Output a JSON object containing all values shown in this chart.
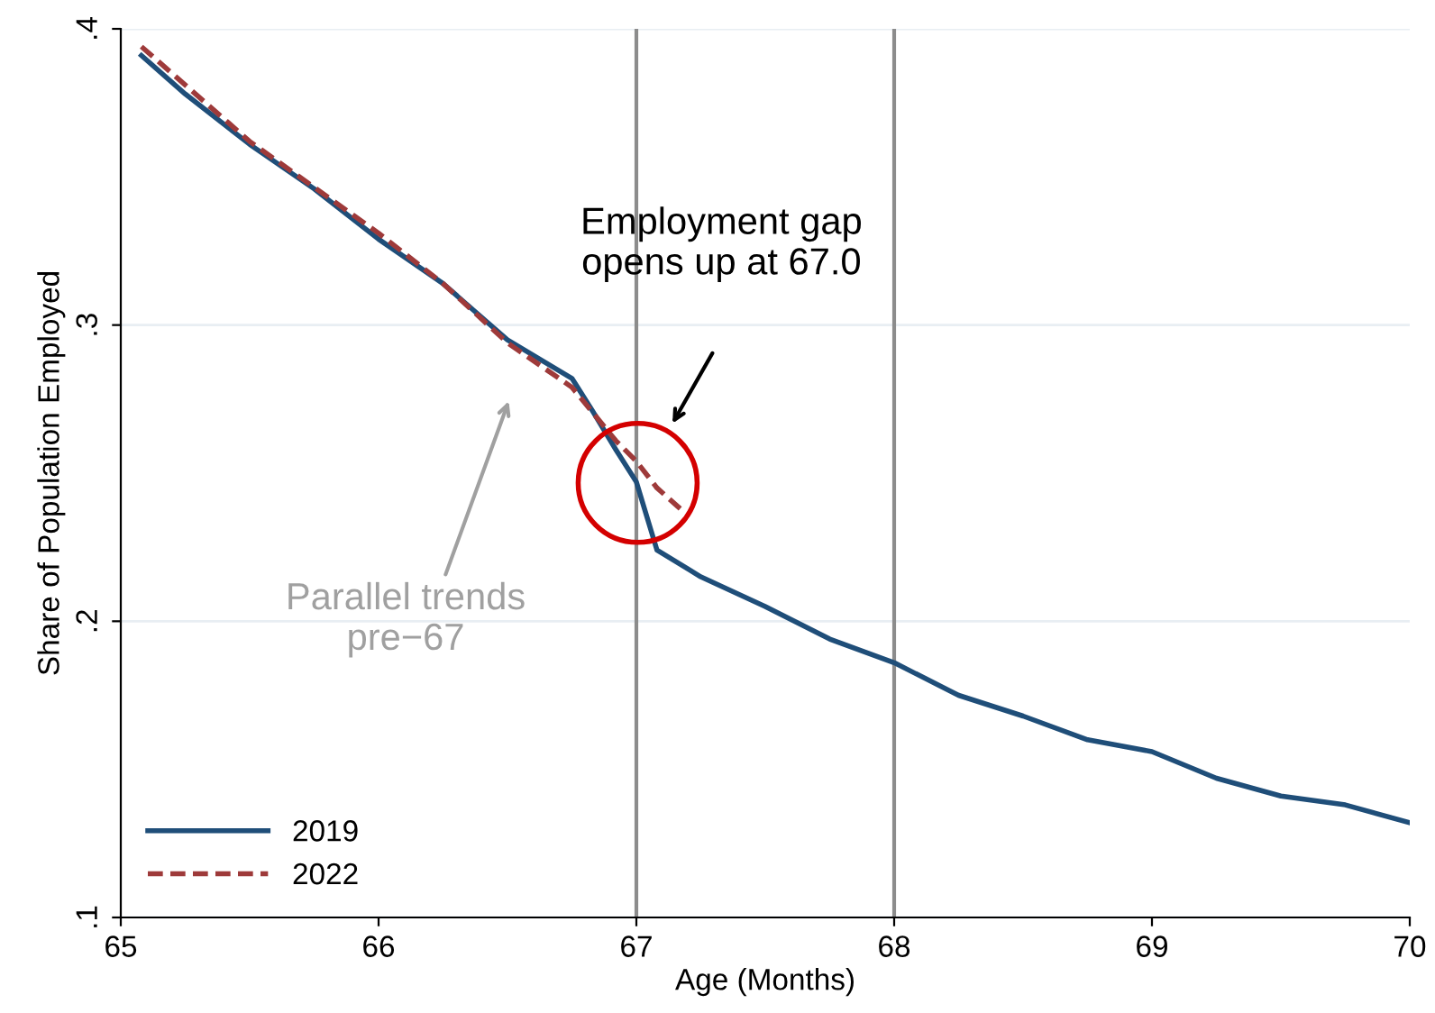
{
  "chart_data": {
    "type": "line",
    "xlabel": "Age (Months)",
    "ylabel": "Share of Population Employed",
    "xlim": [
      65,
      70
    ],
    "ylim": [
      0.1,
      0.4
    ],
    "xticks": [
      65,
      66,
      67,
      68,
      69,
      70
    ],
    "yticks": [
      {
        "value": 0.1,
        "label": ".1"
      },
      {
        "value": 0.2,
        "label": ".2"
      },
      {
        "value": 0.3,
        "label": ".3"
      },
      {
        "value": 0.4,
        "label": ".4"
      }
    ],
    "grid": "y",
    "legend": "bottom left",
    "series": [
      {
        "name": "2019",
        "color": "#1f4e79",
        "line_style": "solid",
        "x": [
          65.08,
          65.25,
          65.5,
          65.75,
          66.0,
          66.25,
          66.5,
          66.75,
          66.83,
          66.92,
          67.0,
          67.08,
          67.25,
          67.5,
          67.75,
          68.0,
          68.25,
          68.5,
          68.75,
          69.0,
          69.25,
          69.5,
          69.75,
          70.0
        ],
        "values": [
          0.391,
          0.378,
          0.361,
          0.346,
          0.329,
          0.314,
          0.295,
          0.282,
          0.271,
          0.258,
          0.247,
          0.224,
          0.215,
          0.205,
          0.194,
          0.186,
          0.175,
          0.168,
          0.16,
          0.156,
          0.147,
          0.141,
          0.138,
          0.132
        ]
      },
      {
        "name": "2022",
        "color": "#9e3a3a",
        "line_style": "dashed",
        "x": [
          65.08,
          65.5,
          66.0,
          66.25,
          66.5,
          66.75,
          66.92,
          67.0,
          67.08,
          67.17
        ],
        "values": [
          0.394,
          0.362,
          0.331,
          0.314,
          0.294,
          0.279,
          0.261,
          0.254,
          0.245,
          0.238
        ]
      }
    ],
    "ref_lines": [
      {
        "axis": "x",
        "value": 67,
        "color": "#8c8c8c"
      },
      {
        "axis": "x",
        "value": 68,
        "color": "#8c8c8c"
      }
    ],
    "annotations": [
      "Employment gap\nopens up at 67.0",
      "Parallel trends\npre−67"
    ]
  }
}
